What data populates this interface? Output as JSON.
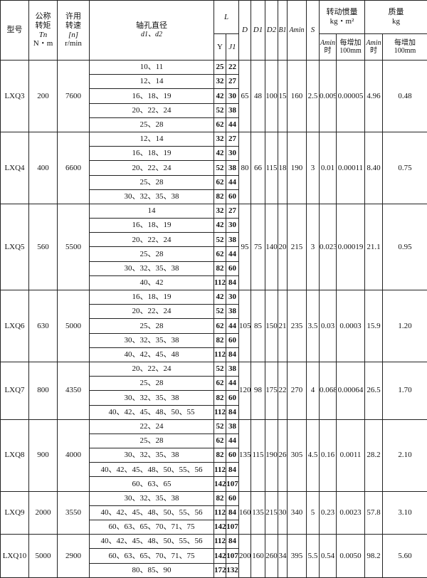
{
  "header": {
    "model": "型号",
    "torque": [
      "公称",
      "转矩",
      "Tn",
      "N・m"
    ],
    "speed": [
      "许用",
      "转速",
      "[n]",
      "r/min"
    ],
    "bore": [
      "轴孔直径",
      "d1、d2"
    ],
    "L": "L",
    "Y": "Y",
    "J1": "J1",
    "D": "D",
    "D1": "D1",
    "D2": "D2",
    "B1": "B1",
    "Amin": "Amin",
    "S": "S",
    "inertia": [
      "转动惯量",
      "kg・m²"
    ],
    "mass": [
      "质量",
      "kg"
    ],
    "at_amin": [
      "Amin",
      "时"
    ],
    "per100": [
      "每增加",
      "100mm"
    ]
  },
  "rows": [
    {
      "model": "LXQ3",
      "torque": "200",
      "speed": "7600",
      "D": "65",
      "D1": "48",
      "D2": "100",
      "B1": "15",
      "Amin": "160",
      "S": "2.5",
      "inertia_amin": "0.009",
      "inertia_per100": "0.00005",
      "mass_amin": "4.96",
      "mass_per100": "0.48",
      "bores": [
        [
          "10、11",
          "25",
          "22"
        ],
        [
          "12、14",
          "32",
          "27"
        ],
        [
          "16、18、19",
          "42",
          "30"
        ],
        [
          "20、22、24",
          "52",
          "38"
        ],
        [
          "25、28",
          "62",
          "44"
        ]
      ]
    },
    {
      "model": "LXQ4",
      "torque": "400",
      "speed": "6600",
      "D": "80",
      "D1": "66",
      "D2": "115",
      "B1": "18",
      "Amin": "190",
      "S": "3",
      "inertia_amin": "0.01",
      "inertia_per100": "0.00011",
      "mass_amin": "8.40",
      "mass_per100": "0.75",
      "bores": [
        [
          "12、14",
          "32",
          "27"
        ],
        [
          "16、18、19",
          "42",
          "30"
        ],
        [
          "20、22、24",
          "52",
          "38"
        ],
        [
          "25、28",
          "62",
          "44"
        ],
        [
          "30、32、35、38",
          "82",
          "60"
        ]
      ]
    },
    {
      "model": "LXQ5",
      "torque": "560",
      "speed": "5500",
      "D": "95",
      "D1": "75",
      "D2": "140",
      "B1": "20",
      "Amin": "215",
      "S": "3",
      "inertia_amin": "0.023",
      "inertia_per100": "0.00019",
      "mass_amin": "21.1",
      "mass_per100": "0.95",
      "bores": [
        [
          "14",
          "32",
          "27"
        ],
        [
          "16、18、19",
          "42",
          "30"
        ],
        [
          "20、22、24",
          "52",
          "38"
        ],
        [
          "25、28",
          "62",
          "44"
        ],
        [
          "30、32、35、38",
          "82",
          "60"
        ],
        [
          "40、42",
          "112",
          "84"
        ]
      ]
    },
    {
      "model": "LXQ6",
      "torque": "630",
      "speed": "5000",
      "D": "105",
      "D1": "85",
      "D2": "150",
      "B1": "21",
      "Amin": "235",
      "S": "3.5",
      "inertia_amin": "0.03",
      "inertia_per100": "0.0003",
      "mass_amin": "15.9",
      "mass_per100": "1.20",
      "bores": [
        [
          "16、18、19",
          "42",
          "30"
        ],
        [
          "20、22、24",
          "52",
          "38"
        ],
        [
          "25、28",
          "62",
          "44"
        ],
        [
          "30、32、35、38",
          "82",
          "60"
        ],
        [
          "40、42、45、48",
          "112",
          "84"
        ]
      ]
    },
    {
      "model": "LXQ7",
      "torque": "800",
      "speed": "4350",
      "D": "120",
      "D1": "98",
      "D2": "175",
      "B1": "22",
      "Amin": "270",
      "S": "4",
      "inertia_amin": "0.068",
      "inertia_per100": "0.00064",
      "mass_amin": "26.5",
      "mass_per100": "1.70",
      "bores": [
        [
          "20、22、24",
          "52",
          "38"
        ],
        [
          "25、28",
          "62",
          "44"
        ],
        [
          "30、32、35、38",
          "82",
          "60"
        ],
        [
          "40、42、45、48、50、55",
          "112",
          "84"
        ]
      ]
    },
    {
      "model": "LXQ8",
      "torque": "900",
      "speed": "4000",
      "D": "135",
      "D1": "115",
      "D2": "190",
      "B1": "26",
      "Amin": "305",
      "S": "4.5",
      "inertia_amin": "0.16",
      "inertia_per100": "0.0011",
      "mass_amin": "28.2",
      "mass_per100": "2.10",
      "bores": [
        [
          "22、24",
          "52",
          "38"
        ],
        [
          "25、28",
          "62",
          "44"
        ],
        [
          "30、32、35、38",
          "82",
          "60"
        ],
        [
          "40、42、45、48、50、55、56",
          "112",
          "84"
        ],
        [
          "60、63、65",
          "142",
          "107"
        ]
      ]
    },
    {
      "model": "LXQ9",
      "torque": "2000",
      "speed": "3550",
      "D": "160",
      "D1": "135",
      "D2": "215",
      "B1": "30",
      "Amin": "340",
      "S": "5",
      "inertia_amin": "0.23",
      "inertia_per100": "0.0023",
      "mass_amin": "57.8",
      "mass_per100": "3.10",
      "bores": [
        [
          "30、32、35、38",
          "82",
          "60"
        ],
        [
          "40、42、45、48、50、55、56",
          "112",
          "84"
        ],
        [
          "60、63、65、70、71、75",
          "142",
          "107"
        ]
      ]
    },
    {
      "model": "LXQ10",
      "torque": "5000",
      "speed": "2900",
      "D": "200",
      "D1": "160",
      "D2": "260",
      "B1": "34",
      "Amin": "395",
      "S": "5.5",
      "inertia_amin": "0.54",
      "inertia_per100": "0.0050",
      "mass_amin": "98.2",
      "mass_per100": "5.60",
      "bores": [
        [
          "40、42、45、48、50、55、56",
          "112",
          "84"
        ],
        [
          "60、63、65、70、71、75",
          "142",
          "107"
        ],
        [
          "80、85、90",
          "172",
          "132"
        ]
      ]
    }
  ]
}
